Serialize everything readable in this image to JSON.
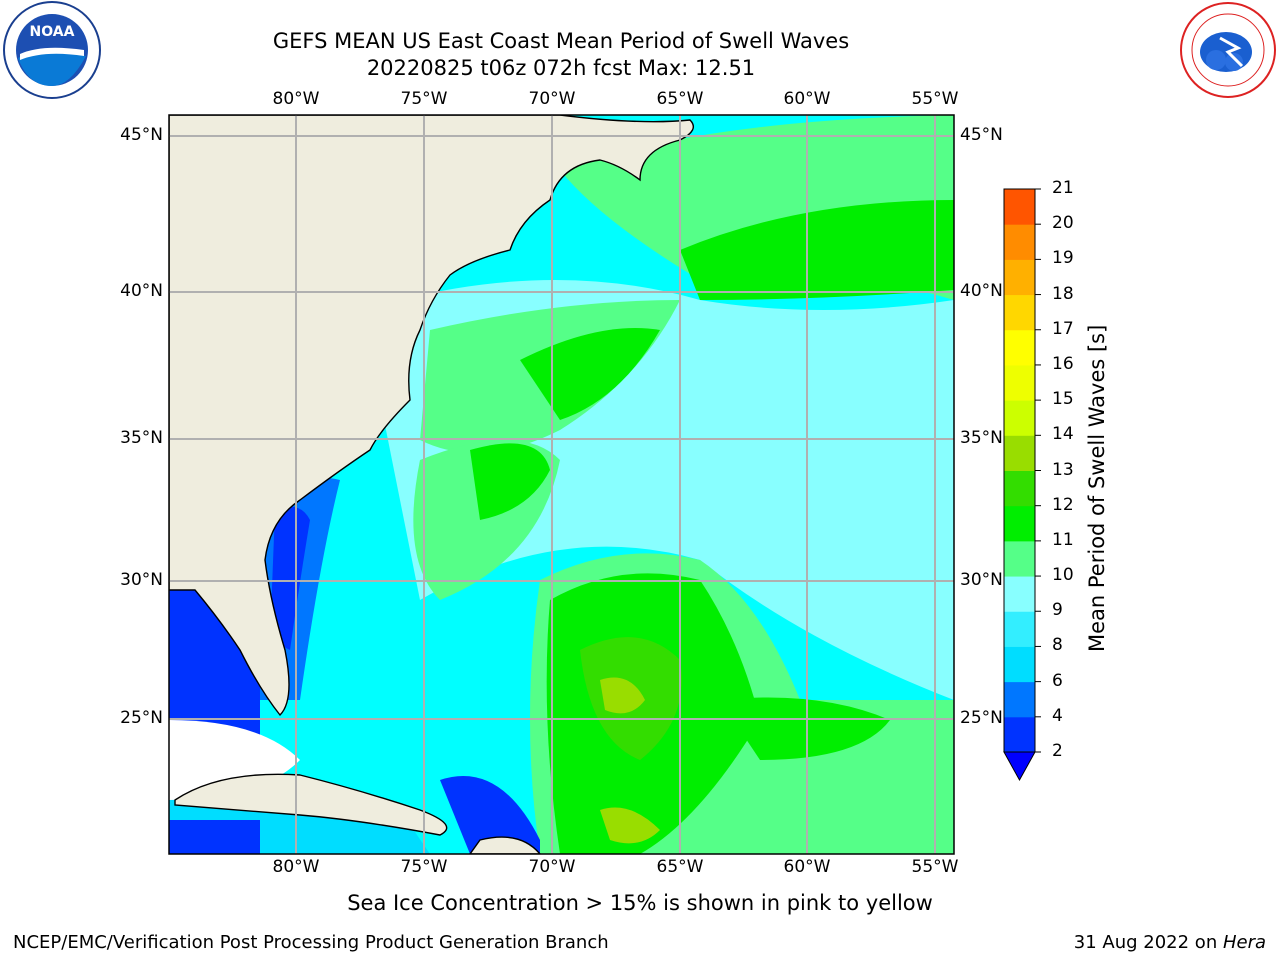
{
  "title": {
    "line1": "GEFS MEAN US East Coast Mean Period of Swell Waves",
    "line2": "20220825 t06z 072h fcst   Max: 12.51"
  },
  "logos": {
    "left": {
      "icon": "noaa-logo",
      "text": "NOAA"
    },
    "right": {
      "icon": "nws-logo"
    }
  },
  "map": {
    "lon_labels": [
      "80°W",
      "75°W",
      "70°W",
      "65°W",
      "60°W",
      "55°W"
    ],
    "lat_labels": [
      "45°N",
      "40°N",
      "35°N",
      "30°N",
      "25°N"
    ],
    "colors": {
      "land": "#efedde",
      "ocean_ice": "#ffffff",
      "grid": "#b0b0b0"
    }
  },
  "colorbar": {
    "title": "Mean Period of Swell Waves [s]",
    "ticks": [
      "2",
      "4",
      "6",
      "8",
      "9",
      "10",
      "11",
      "12",
      "13",
      "14",
      "15",
      "16",
      "17",
      "18",
      "19",
      "20",
      "21"
    ],
    "colors": [
      "#0033ff",
      "#0077ff",
      "#00ddff",
      "#33eeff",
      "#88ffff",
      "#55ff88",
      "#00ee00",
      "#33dd00",
      "#99dd00",
      "#ccff00",
      "#eeff00",
      "#ffff00",
      "#ffd700",
      "#ffb000",
      "#ff8c00",
      "#ff5500",
      "#ff2200",
      "#ff0000"
    ],
    "under_color": "#0000ff"
  },
  "note": "Sea Ice Concentration > 15% is shown in pink to yellow",
  "footer": {
    "left": "NCEP/EMC/Verification Post Processing Product Generation Branch",
    "right_prefix": "31 Aug 2022 on ",
    "right_host": "Hera"
  }
}
